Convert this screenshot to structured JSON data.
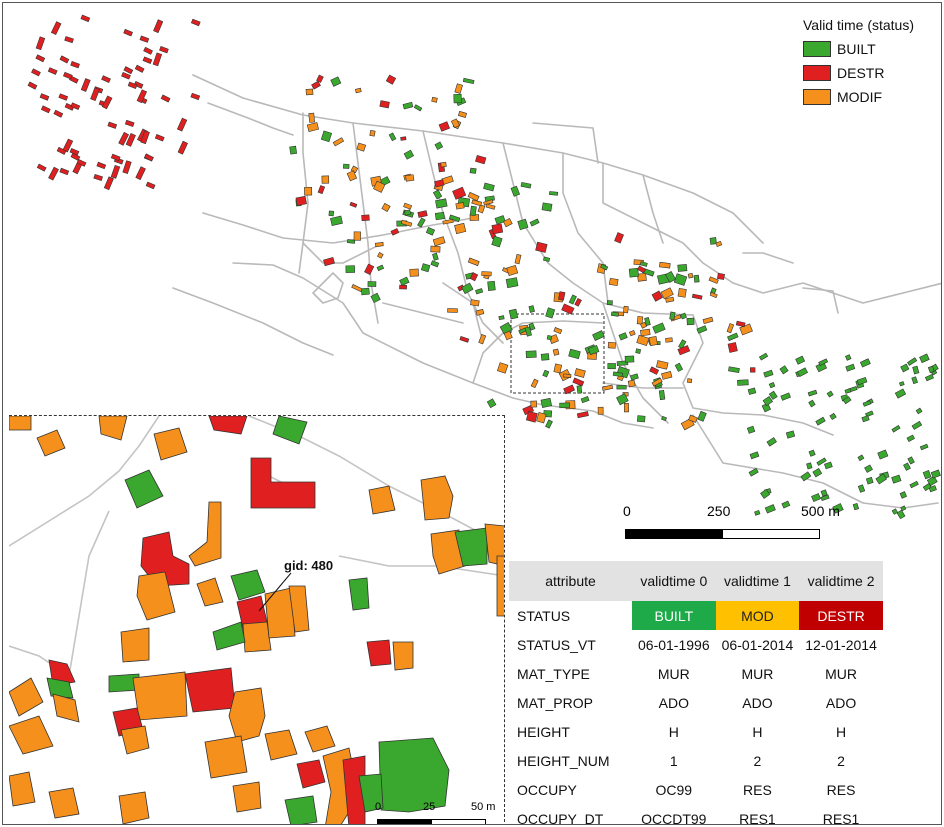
{
  "legend": {
    "title": "Valid time (status)",
    "items": [
      {
        "label": "BUILT",
        "color": "#3aa82e"
      },
      {
        "label": "DESTR",
        "color": "#e02020"
      },
      {
        "label": "MODIF",
        "color": "#f5901c"
      }
    ]
  },
  "scale_main": {
    "labels": [
      "0",
      "250",
      "500 m"
    ]
  },
  "scale_inset": {
    "labels": [
      "0",
      "25",
      "50 m"
    ]
  },
  "inset": {
    "gid_label": "gid: 480"
  },
  "table": {
    "headers": [
      "attribute",
      "validtime 0",
      "validtime 1",
      "validtime 2"
    ],
    "status": {
      "key": "STATUS",
      "cells": [
        {
          "label": "BUILT",
          "color": "#1faa4a"
        },
        {
          "label": "MOD",
          "color": "#ffc000"
        },
        {
          "label": "DESTR",
          "color": "#c00000"
        }
      ]
    },
    "rows": [
      {
        "key": "STATUS_VT",
        "v0": "06-01-1996",
        "v1": "06-01-2014",
        "v2": "12-01-2014"
      },
      {
        "key": "MAT_TYPE",
        "v0": "MUR",
        "v1": "MUR",
        "v2": "MUR"
      },
      {
        "key": "MAT_PROP",
        "v0": "ADO",
        "v1": "ADO",
        "v2": "ADO"
      },
      {
        "key": "HEIGHT",
        "v0": "H",
        "v1": "H",
        "v2": "H"
      },
      {
        "key": "HEIGHT_NUM",
        "v0": "1",
        "v1": "2",
        "v2": "2"
      },
      {
        "key": "OCCUPY",
        "v0": "OC99",
        "v1": "RES",
        "v2": "RES"
      },
      {
        "key": "OCCUPY_DT",
        "v0": "OCCDT99",
        "v1": "RES1",
        "v2": "RES1"
      }
    ]
  }
}
